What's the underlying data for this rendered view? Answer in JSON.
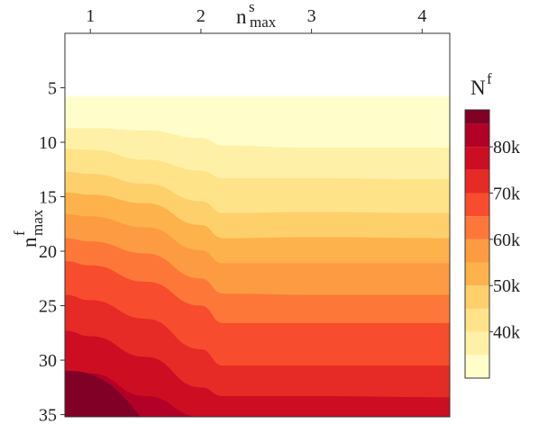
{
  "chart_data": {
    "type": "heatmap",
    "title": "",
    "xlabel": {
      "base": "n",
      "sup": "s",
      "sub": "max"
    },
    "ylabel": {
      "base": "n",
      "sup": "f",
      "sub": "max"
    },
    "x_ticks": [
      "1",
      "2",
      "3",
      "4"
    ],
    "y_ticks": [
      "5",
      "10",
      "15",
      "20",
      "25",
      "30",
      "35"
    ],
    "xlim": [
      0.77,
      4.25
    ],
    "ylim": [
      0,
      35.2
    ],
    "colorbar": {
      "title": {
        "base": "N",
        "sup": "f"
      },
      "tick_labels": [
        "40k",
        "50k",
        "60k",
        "70k",
        "80k"
      ],
      "ticks": [
        40000,
        50000,
        60000,
        70000,
        80000
      ],
      "range": [
        30000,
        88000
      ],
      "levels": [
        {
          "from": 30000,
          "to": 35000,
          "color": "#fffecb"
        },
        {
          "from": 35000,
          "to": 40000,
          "color": "#fff0a7"
        },
        {
          "from": 40000,
          "to": 45000,
          "color": "#fee389"
        },
        {
          "from": 45000,
          "to": 50000,
          "color": "#fed06c"
        },
        {
          "from": 50000,
          "to": 55000,
          "color": "#feb24c"
        },
        {
          "from": 55000,
          "to": 60000,
          "color": "#fd9b43"
        },
        {
          "from": 60000,
          "to": 65000,
          "color": "#fd7838"
        },
        {
          "from": 65000,
          "to": 70000,
          "color": "#f84c2e"
        },
        {
          "from": 70000,
          "to": 75000,
          "color": "#e62a25"
        },
        {
          "from": 75000,
          "to": 80000,
          "color": "#cd0d22"
        },
        {
          "from": 80000,
          "to": 85000,
          "color": "#b20026"
        },
        {
          "from": 85000,
          "to": 88000,
          "color": "#800026"
        }
      ]
    },
    "contour_boundaries_y": {
      "x": [
        0.77,
        1.0,
        1.5,
        2.0,
        2.2,
        3.0,
        4.25
      ],
      "lines": [
        [
          5.8,
          5.8,
          5.8,
          5.8,
          5.8,
          5.8,
          5.8
        ],
        [
          8.7,
          8.7,
          8.9,
          9.6,
          10.3,
          10.5,
          10.5
        ],
        [
          10.6,
          10.7,
          11.6,
          12.6,
          13.3,
          13.3,
          13.4
        ],
        [
          12.7,
          12.9,
          13.8,
          15.4,
          16.5,
          16.4,
          16.5
        ],
        [
          14.6,
          14.8,
          15.6,
          17.6,
          18.8,
          18.7,
          18.8
        ],
        [
          16.6,
          16.8,
          17.8,
          19.9,
          21.1,
          21.1,
          21.1
        ],
        [
          18.8,
          19.1,
          20.2,
          22.5,
          23.9,
          24.0,
          24.0
        ],
        [
          20.9,
          21.3,
          22.8,
          25.0,
          26.6,
          26.6,
          26.6
        ],
        [
          24.0,
          24.5,
          26.2,
          29.0,
          30.5,
          30.5,
          30.5
        ],
        [
          27.3,
          27.8,
          29.7,
          32.5,
          33.3,
          33.3,
          33.4
        ],
        [
          31.0,
          31.2,
          33.3,
          35.2,
          35.2,
          35.2,
          35.2
        ]
      ]
    },
    "peak_region": {
      "x_max": 1.45,
      "y_top": 31.0,
      "color": "#800026"
    }
  }
}
